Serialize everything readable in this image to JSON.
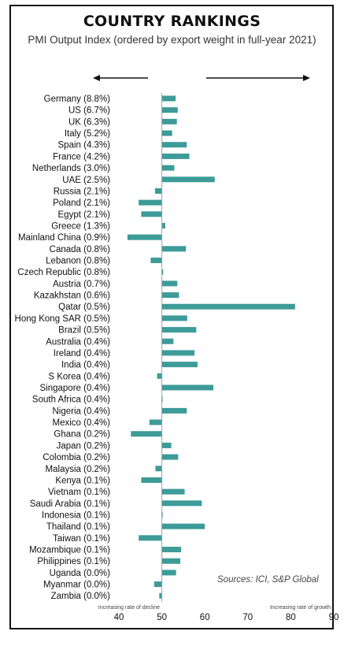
{
  "title": "COUNTRY RANKINGS",
  "subtitle": "PMI Output Index (ordered by export weight in full-year 2021)",
  "sources": "Sources: ICI, S&P Global",
  "colors": {
    "bar": "#3d9b98",
    "axis": "#9aa0a6",
    "text": "#111111"
  },
  "chart_data": {
    "type": "bar",
    "orientation": "horizontal",
    "baseline": 50,
    "xlim": [
      40,
      90
    ],
    "xticks": [
      40,
      50,
      60,
      70,
      80,
      90
    ],
    "left_note": "Increasing rate of decline",
    "right_note": "Increasing rate of growth",
    "arrows": [
      "left",
      "right"
    ],
    "categories": [
      "Germany (8.8%)",
      "US (6.7%)",
      "UK (6.3%)",
      "Italy (5.2%)",
      "Spain (4.3%)",
      "France (4.2%)",
      "Netherlands (3.0%)",
      "UAE (2.5%)",
      "Russia (2.1%)",
      "Poland (2.1%)",
      "Egypt (2.1%)",
      "Greece (1.3%)",
      "Mainland China (0.9%)",
      "Canada (0.8%)",
      "Lebanon (0.8%)",
      "Czech Republic (0.8%)",
      "Austria (0.7%)",
      "Kazakhstan (0.6%)",
      "Qatar (0.5%)",
      "Hong Kong SAR (0.5%)",
      "Brazil (0.5%)",
      "Australia (0.4%)",
      "Ireland (0.4%)",
      "India (0.4%)",
      "S Korea (0.4%)",
      "Singapore (0.4%)",
      "South Africa (0.4%)",
      "Nigeria (0.4%)",
      "Mexico (0.4%)",
      "Ghana (0.2%)",
      "Japan (0.2%)",
      "Colombia (0.2%)",
      "Malaysia (0.2%)",
      "Kenya (0.1%)",
      "Vietnam (0.1%)",
      "Saudi Arabia (0.1%)",
      "Indonesia (0.1%)",
      "Thailand (0.1%)",
      "Taiwan (0.1%)",
      "Mozambique (0.1%)",
      "Philippines (0.1%)",
      "Uganda (0.0%)",
      "Myanmar (0.0%)",
      "Zambia (0.0%)"
    ],
    "values": [
      53.2,
      53.7,
      53.5,
      52.4,
      55.8,
      56.4,
      52.9,
      62.3,
      48.4,
      44.6,
      45.2,
      50.8,
      42.0,
      55.6,
      47.4,
      50.3,
      53.6,
      54.0,
      81.0,
      55.9,
      58.0,
      52.7,
      57.6,
      58.3,
      48.9,
      62.0,
      50.1,
      55.8,
      47.1,
      42.8,
      52.2,
      53.8,
      48.5,
      45.2,
      55.3,
      59.3,
      50.2,
      60.0,
      44.6,
      54.5,
      54.3,
      53.3,
      48.2,
      49.4
    ]
  }
}
